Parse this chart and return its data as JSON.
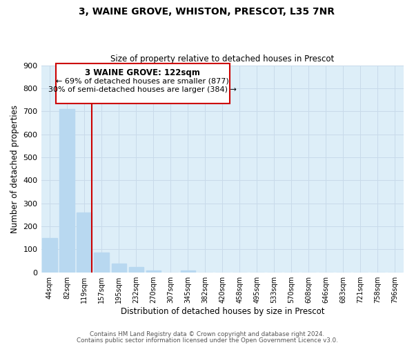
{
  "title": "3, WAINE GROVE, WHISTON, PRESCOT, L35 7NR",
  "subtitle": "Size of property relative to detached houses in Prescot",
  "xlabel": "Distribution of detached houses by size in Prescot",
  "ylabel": "Number of detached properties",
  "bar_labels": [
    "44sqm",
    "82sqm",
    "119sqm",
    "157sqm",
    "195sqm",
    "232sqm",
    "270sqm",
    "307sqm",
    "345sqm",
    "382sqm",
    "420sqm",
    "458sqm",
    "495sqm",
    "533sqm",
    "570sqm",
    "608sqm",
    "646sqm",
    "683sqm",
    "721sqm",
    "758sqm",
    "796sqm"
  ],
  "bar_values": [
    150,
    710,
    260,
    85,
    38,
    22,
    8,
    0,
    8,
    0,
    0,
    0,
    0,
    0,
    0,
    0,
    0,
    0,
    0,
    0,
    0
  ],
  "bar_color": "#b8d8f0",
  "vline_bar_index": 2,
  "vline_color": "#cc0000",
  "ylim": [
    0,
    900
  ],
  "yticks": [
    0,
    100,
    200,
    300,
    400,
    500,
    600,
    700,
    800,
    900
  ],
  "annotation_box": {
    "text_line1": "3 WAINE GROVE: 122sqm",
    "text_line2": "← 69% of detached houses are smaller (877)",
    "text_line3": "30% of semi-detached houses are larger (384) →",
    "edge_color": "#cc0000",
    "face_color": "white"
  },
  "footer_line1": "Contains HM Land Registry data © Crown copyright and database right 2024.",
  "footer_line2": "Contains public sector information licensed under the Open Government Licence v3.0.",
  "grid_color": "#c8daea",
  "background_color": "#ddeef8",
  "title_fontsize": 10,
  "subtitle_fontsize": 8.5
}
